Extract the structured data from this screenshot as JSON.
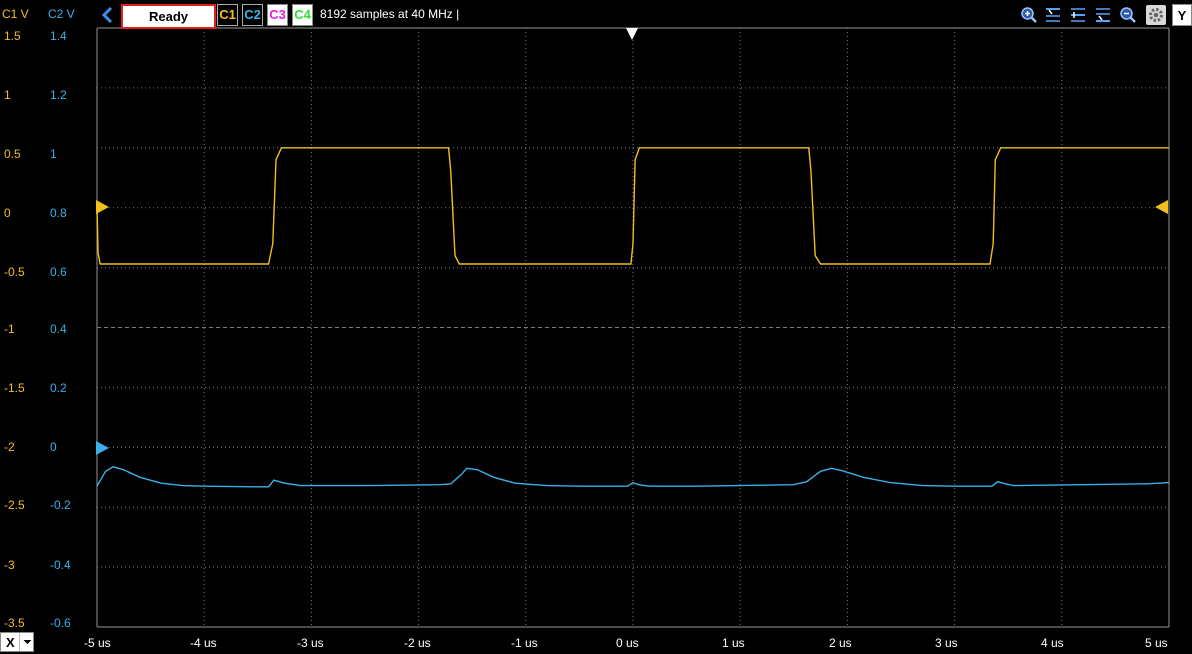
{
  "header": {
    "c1_axis_title": "C1 V",
    "c2_axis_title": "C2 V",
    "status": "Ready",
    "channels": [
      {
        "label": "C1",
        "color": "#f0c020"
      },
      {
        "label": "C2",
        "color": "#3ab0e8"
      },
      {
        "label": "C3",
        "color": "#e020e0"
      },
      {
        "label": "C4",
        "color": "#30e030"
      }
    ],
    "samples_info": "8192 samples at 40 MHz |",
    "y_button": "Y"
  },
  "toolbar": {
    "icons": [
      "zoom-in-icon",
      "align-top-icon",
      "align-middle-icon",
      "align-bottom-icon",
      "zoom-out-icon",
      "settings-gear-icon"
    ]
  },
  "axes": {
    "c1_ticks": [
      "1.5",
      "1",
      "0.5",
      "0",
      "-0.5",
      "-1",
      "-1.5",
      "-2",
      "-2.5",
      "-3",
      "-3.5"
    ],
    "c2_ticks": [
      "1.4",
      "1.2",
      "1",
      "0.8",
      "0.6",
      "0.4",
      "0.2",
      "0",
      "-0.2",
      "-0.4",
      "-0.6"
    ],
    "x_ticks": [
      "-5 us",
      "-4 us",
      "-3 us",
      "-2 us",
      "-1 us",
      "0 us",
      "1 us",
      "2 us",
      "3 us",
      "4 us",
      "5 us"
    ],
    "x_selector": "X"
  },
  "colors": {
    "c1": "#f0c020",
    "c2": "#3ab0e8",
    "grid": "#7a7a7a",
    "background": "#000000"
  },
  "chart_data": {
    "type": "line",
    "xlabel": "",
    "x_unit": "us",
    "xlim": [
      -5,
      5
    ],
    "grid": true,
    "series": [
      {
        "name": "C1",
        "axis": "C1 V",
        "ylim": [
          -3.5,
          1.5
        ],
        "x": [
          -5.0,
          -4.99,
          -4.97,
          -4.9,
          -3.4,
          -3.36,
          -3.33,
          -3.28,
          -1.72,
          -1.7,
          -1.66,
          -1.62,
          -0.02,
          0.0,
          0.02,
          0.06,
          1.64,
          1.66,
          1.7,
          1.75,
          3.33,
          3.36,
          3.38,
          3.43,
          5.0
        ],
        "values": [
          0.0,
          -0.38,
          -0.47,
          -0.47,
          -0.47,
          -0.3,
          0.4,
          0.5,
          0.5,
          0.3,
          -0.4,
          -0.47,
          -0.47,
          -0.3,
          0.4,
          0.5,
          0.5,
          0.3,
          -0.4,
          -0.47,
          -0.47,
          -0.3,
          0.4,
          0.5,
          0.5
        ]
      },
      {
        "name": "C2",
        "axis": "C2 V",
        "ylim": [
          -0.6,
          1.4
        ],
        "x": [
          -5.0,
          -4.92,
          -4.85,
          -4.75,
          -4.6,
          -4.4,
          -4.2,
          -4.0,
          -3.5,
          -3.4,
          -3.35,
          -3.25,
          -3.1,
          -2.5,
          -1.8,
          -1.7,
          -1.6,
          -1.55,
          -1.45,
          -1.3,
          -1.1,
          -0.8,
          -0.5,
          -0.05,
          0.0,
          0.05,
          0.15,
          0.6,
          1.5,
          1.62,
          1.75,
          1.85,
          1.95,
          2.15,
          2.4,
          2.7,
          3.0,
          3.35,
          3.4,
          3.45,
          3.55,
          4.2,
          4.8,
          5.0
        ],
        "values": [
          -0.13,
          -0.08,
          -0.065,
          -0.075,
          -0.1,
          -0.12,
          -0.128,
          -0.13,
          -0.132,
          -0.132,
          -0.11,
          -0.12,
          -0.128,
          -0.128,
          -0.125,
          -0.122,
          -0.09,
          -0.07,
          -0.075,
          -0.1,
          -0.12,
          -0.128,
          -0.13,
          -0.13,
          -0.118,
          -0.125,
          -0.13,
          -0.13,
          -0.125,
          -0.115,
          -0.08,
          -0.07,
          -0.078,
          -0.1,
          -0.118,
          -0.128,
          -0.13,
          -0.13,
          -0.115,
          -0.12,
          -0.128,
          -0.125,
          -0.122,
          -0.118
        ]
      }
    ]
  }
}
